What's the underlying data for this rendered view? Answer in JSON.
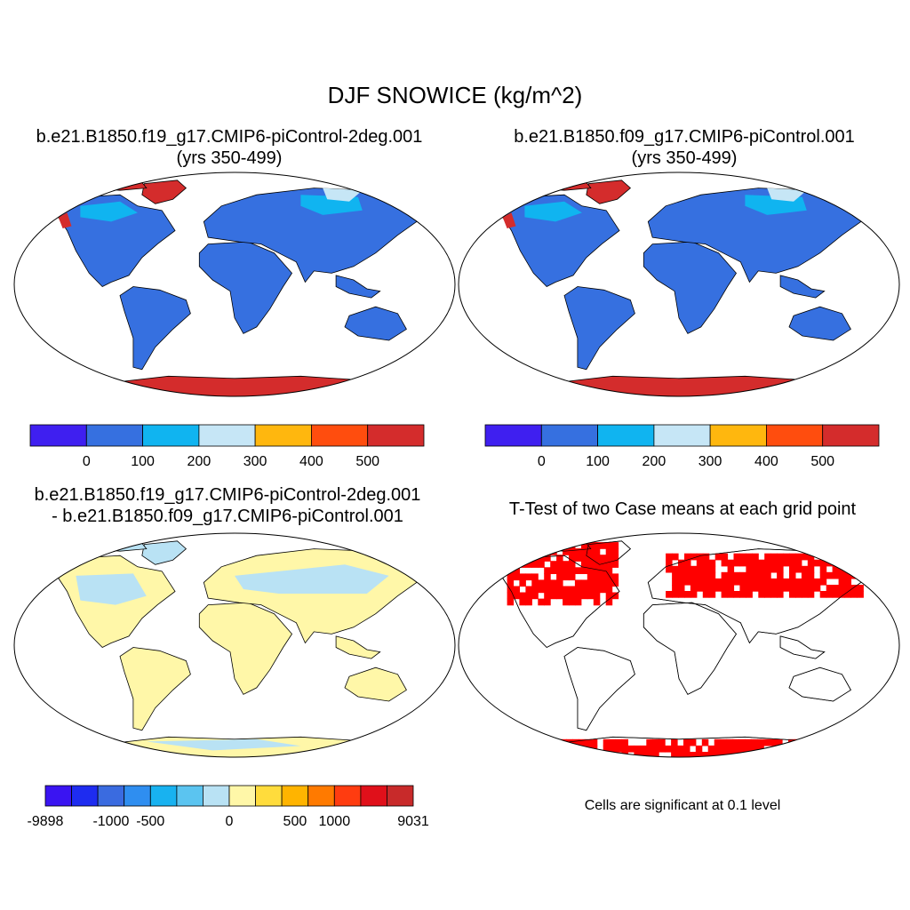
{
  "figure": {
    "title": "DJF SNOWICE (kg/m^2)"
  },
  "panels": [
    {
      "name": "case1",
      "title_line1": "b.e21.B1850.f19_g17.CMIP6-piControl-2deg.001",
      "title_line2": "(yrs 350-499)",
      "colorbar": {
        "colors": [
          "#3f1ff0",
          "#3670e0",
          "#10b4f0",
          "#c6e6f6",
          "#ffb70e",
          "#ff4d0e",
          "#d42c2c"
        ],
        "labels": [
          "0",
          "100",
          "200",
          "300",
          "400",
          "500"
        ]
      }
    },
    {
      "name": "case2",
      "title_line1": "b.e21.B1850.f09_g17.CMIP6-piControl.001",
      "title_line2": "(yrs 350-499)",
      "colorbar": {
        "colors": [
          "#3f1ff0",
          "#3670e0",
          "#10b4f0",
          "#c6e6f6",
          "#ffb70e",
          "#ff4d0e",
          "#d42c2c"
        ],
        "labels": [
          "0",
          "100",
          "200",
          "300",
          "400",
          "500"
        ]
      }
    },
    {
      "name": "difference",
      "title_line1": "b.e21.B1850.f19_g17.CMIP6-piControl-2deg.001",
      "title_line2": "- b.e21.B1850.f09_g17.CMIP6-piControl.001",
      "colorbar": {
        "colors": [
          "#3a14f2",
          "#1e2cf0",
          "#3a6be0",
          "#2f8ef0",
          "#18b2f0",
          "#5bc4f0",
          "#b9e2f4",
          "#fff7a8",
          "#ffdc3c",
          "#ffb400",
          "#ff7a00",
          "#ff3c10",
          "#e0101a",
          "#c82a2a"
        ],
        "labels": [
          "-9898",
          "-1000",
          "-500",
          "0",
          "500",
          "1000",
          "9031"
        ]
      }
    },
    {
      "name": "ttest",
      "title_line1": "T-Test of two Case means at each grid point",
      "note": "Cells are significant at 0.1 level",
      "significant_color": "#ff0000"
    }
  ],
  "map_colors": {
    "land_snow_low": "#3670e0",
    "land_snow_mid": "#10b4f0",
    "land_snow_light": "#c6e6f6",
    "ice_sheet": "#d42c2c",
    "diff_land": "#fff7a8",
    "diff_blue": "#b9e2f4"
  }
}
